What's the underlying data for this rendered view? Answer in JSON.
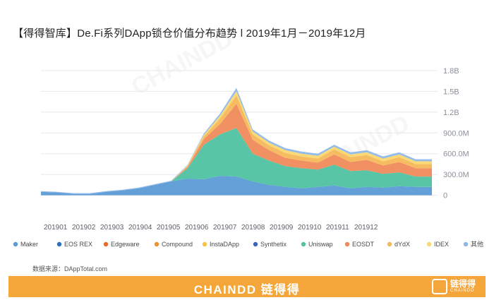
{
  "title": "【得得智库】De.Fi系列DApp锁仓价值分布趋势 l 2019年1月－2019年12月",
  "source_label": "数据来源：DAppTotal.com",
  "watermark": "CHAINDD",
  "footer": {
    "brand": "CHAINDD 链得得",
    "logo_main": "链得得",
    "logo_sub": "CHAINDD"
  },
  "chart_data": {
    "type": "area",
    "stacked": true,
    "ylim": [
      -300000000,
      1800000000
    ],
    "y_ticks": [
      0,
      300000000,
      600000000,
      900000000,
      1200000000,
      1500000000,
      1800000000
    ],
    "y_tick_labels": [
      "0",
      "300.0M",
      "600.0M",
      "900.0M",
      "1.2B",
      "1.5B",
      "1.8B"
    ],
    "grid": true,
    "legend_position": "bottom",
    "x_tick_labels": [
      "201901",
      "201902",
      "201903",
      "201904",
      "201905",
      "201906",
      "201907",
      "201908",
      "201909",
      "201910",
      "201911",
      "201912"
    ],
    "x": [
      "2019-01",
      "2019-01",
      "2019-02",
      "2019-02",
      "2019-03",
      "2019-03",
      "2019-04",
      "2019-04",
      "2019-05",
      "2019-05",
      "2019-06",
      "2019-06",
      "2019-07",
      "2019-07",
      "2019-08",
      "2019-08",
      "2019-09",
      "2019-09",
      "2019-10",
      "2019-10",
      "2019-11",
      "2019-11",
      "2019-12",
      "2019-12",
      "2019-12"
    ],
    "series": [
      {
        "name": "Maker",
        "color": "#5b9bd5",
        "values": [
          50,
          40,
          20,
          20,
          50,
          70,
          100,
          150,
          200,
          240,
          230,
          280,
          270,
          200,
          150,
          120,
          100,
          120,
          140,
          100,
          120,
          110,
          130,
          120,
          120
        ]
      },
      {
        "name": "EOS REX",
        "color": "#2c6fbf",
        "values": [
          0,
          0,
          0,
          0,
          0,
          0,
          0,
          0,
          0,
          0,
          0,
          0,
          0,
          0,
          0,
          0,
          0,
          0,
          0,
          0,
          0,
          0,
          0,
          0,
          0
        ]
      },
      {
        "name": "Edgeware",
        "color": "#ea6a2a",
        "values": [
          0,
          0,
          0,
          0,
          0,
          0,
          0,
          0,
          0,
          0,
          0,
          0,
          0,
          0,
          0,
          0,
          0,
          0,
          0,
          0,
          0,
          0,
          0,
          0,
          0
        ]
      },
      {
        "name": "Compound",
        "color": "#f0922e",
        "values": [
          0,
          0,
          0,
          0,
          0,
          0,
          0,
          0,
          0,
          0,
          0,
          0,
          0,
          0,
          0,
          0,
          0,
          0,
          0,
          0,
          0,
          0,
          0,
          0,
          0
        ]
      },
      {
        "name": "InstaDApp",
        "color": "#f6c343",
        "values": [
          0,
          0,
          0,
          0,
          0,
          0,
          0,
          0,
          0,
          0,
          0,
          0,
          0,
          0,
          0,
          0,
          0,
          0,
          0,
          0,
          0,
          0,
          0,
          0,
          0
        ]
      },
      {
        "name": "Synthetix",
        "color": "#3a64c2",
        "values": [
          0,
          0,
          0,
          0,
          0,
          0,
          0,
          0,
          0,
          0,
          0,
          0,
          0,
          0,
          0,
          0,
          0,
          0,
          0,
          0,
          0,
          0,
          0,
          0,
          0
        ]
      },
      {
        "name": "Uniswap",
        "color": "#4fc3a1",
        "values": [
          0,
          0,
          0,
          0,
          0,
          0,
          0,
          0,
          0,
          150,
          500,
          600,
          700,
          400,
          350,
          300,
          290,
          250,
          300,
          250,
          240,
          200,
          200,
          150,
          150
        ]
      },
      {
        "name": "EOSDT",
        "color": "#f08a5a",
        "values": [
          0,
          0,
          0,
          0,
          0,
          0,
          0,
          0,
          0,
          20,
          80,
          150,
          350,
          200,
          150,
          120,
          110,
          100,
          150,
          130,
          150,
          120,
          150,
          120,
          120
        ]
      },
      {
        "name": "dYdX",
        "color": "#f5b85a",
        "values": [
          0,
          0,
          0,
          0,
          0,
          0,
          0,
          0,
          0,
          10,
          40,
          80,
          120,
          80,
          70,
          70,
          60,
          60,
          70,
          70,
          70,
          60,
          70,
          60,
          60
        ]
      },
      {
        "name": "IDEX",
        "color": "#fbd86e",
        "values": [
          0,
          0,
          0,
          0,
          0,
          0,
          0,
          0,
          0,
          10,
          20,
          40,
          60,
          40,
          40,
          40,
          40,
          40,
          40,
          40,
          40,
          40,
          40,
          40,
          40
        ]
      },
      {
        "name": "其他",
        "color": "#8fb8e8",
        "values": [
          10,
          10,
          10,
          10,
          10,
          10,
          10,
          10,
          10,
          10,
          20,
          30,
          50,
          30,
          30,
          30,
          30,
          30,
          30,
          30,
          30,
          30,
          30,
          30,
          30
        ]
      }
    ]
  }
}
